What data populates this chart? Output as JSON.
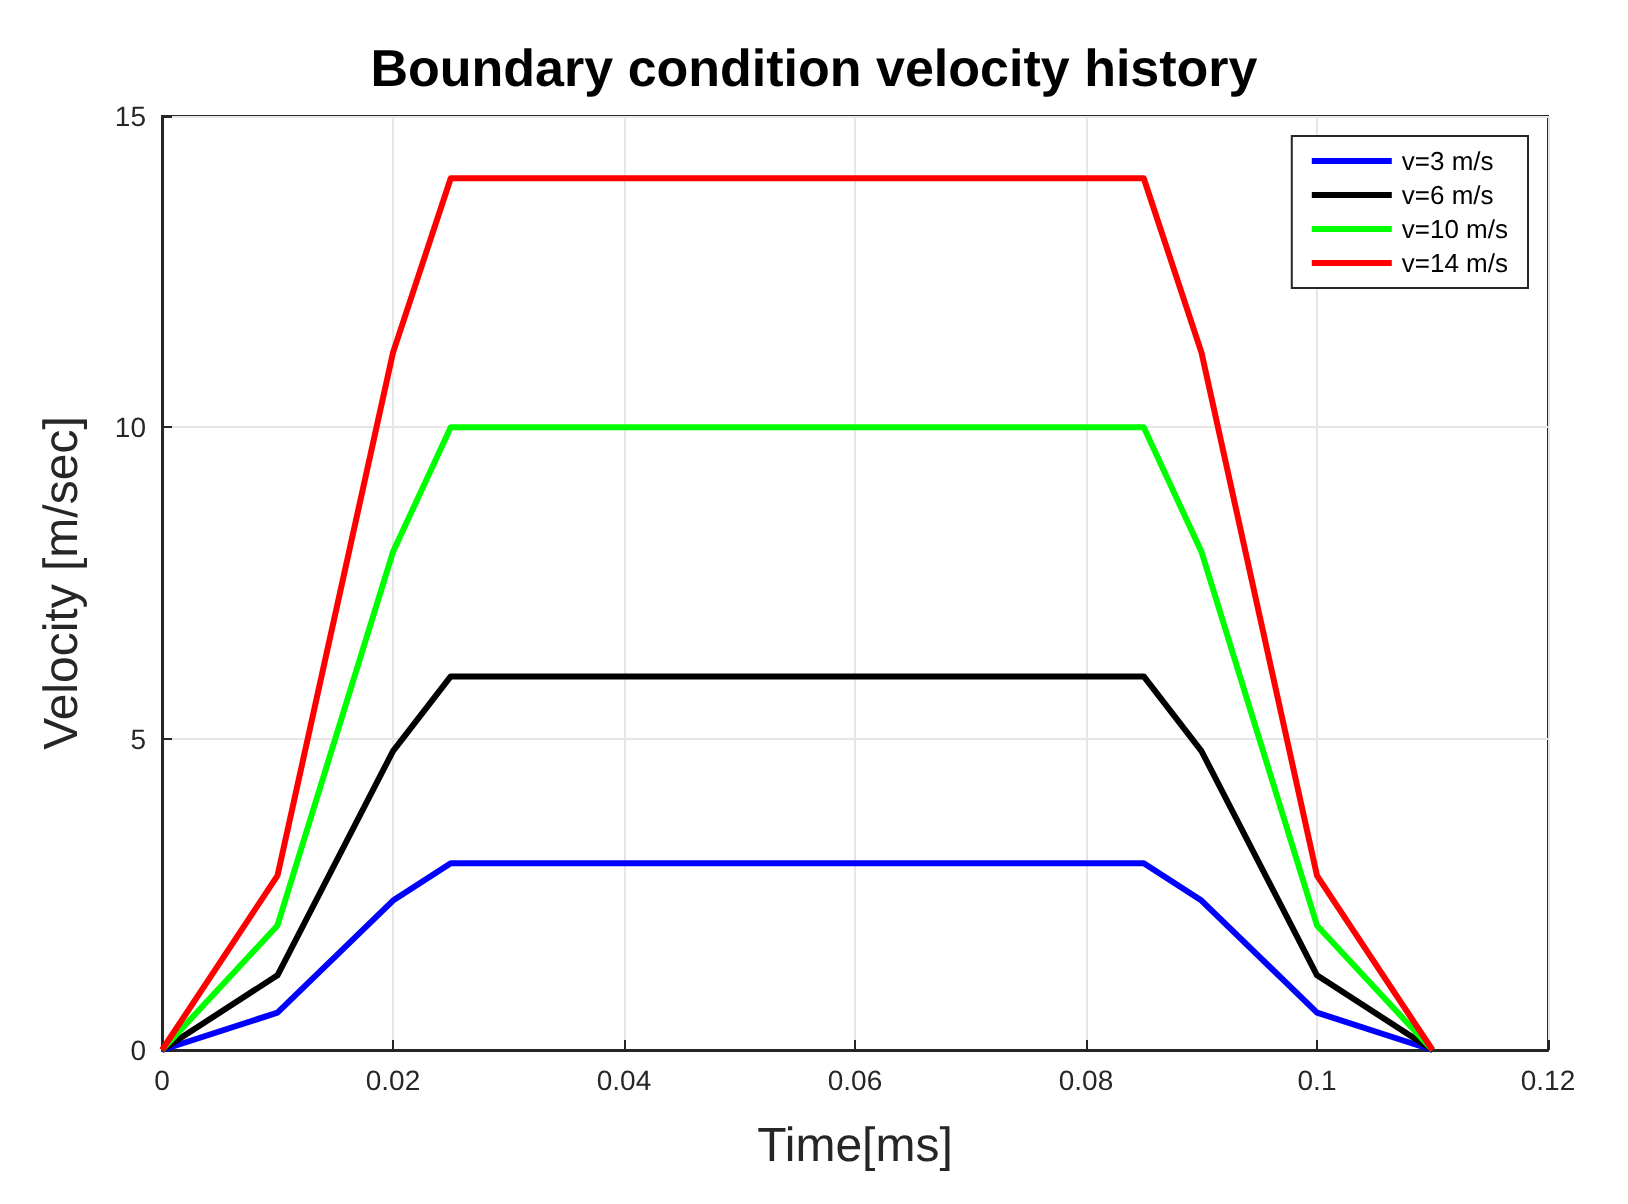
{
  "chart_data": {
    "type": "line",
    "title": "Boundary condition velocity history",
    "xlabel": "Time[ms]",
    "ylabel": "Velocity [m/sec]",
    "x": [
      0,
      0.01,
      0.02,
      0.025,
      0.085,
      0.09,
      0.1,
      0.11
    ],
    "series": [
      {
        "name": "v=3 m/s",
        "color": "#0000ff",
        "values": [
          0,
          0.6,
          2.4,
          3,
          3,
          2.4,
          0.6,
          0
        ]
      },
      {
        "name": "v=6 m/s",
        "color": "#000000",
        "values": [
          0,
          1.2,
          4.8,
          6,
          6,
          4.8,
          1.2,
          0
        ]
      },
      {
        "name": "v=10 m/s",
        "color": "#00ff00",
        "values": [
          0,
          2,
          8,
          10,
          10,
          8,
          2,
          0
        ]
      },
      {
        "name": "v=14 m/s",
        "color": "#ff0000",
        "values": [
          0,
          2.8,
          11.2,
          14,
          14,
          11.2,
          2.8,
          0
        ]
      }
    ],
    "xlim": [
      0,
      0.12
    ],
    "xticks": [
      0,
      0.02,
      0.04,
      0.06,
      0.08,
      0.1,
      0.12
    ],
    "ylim": [
      0,
      15
    ],
    "yticks": [
      0,
      5,
      10,
      15
    ],
    "grid": true,
    "legend": "top right",
    "marker": "none",
    "line_style": "solid"
  }
}
